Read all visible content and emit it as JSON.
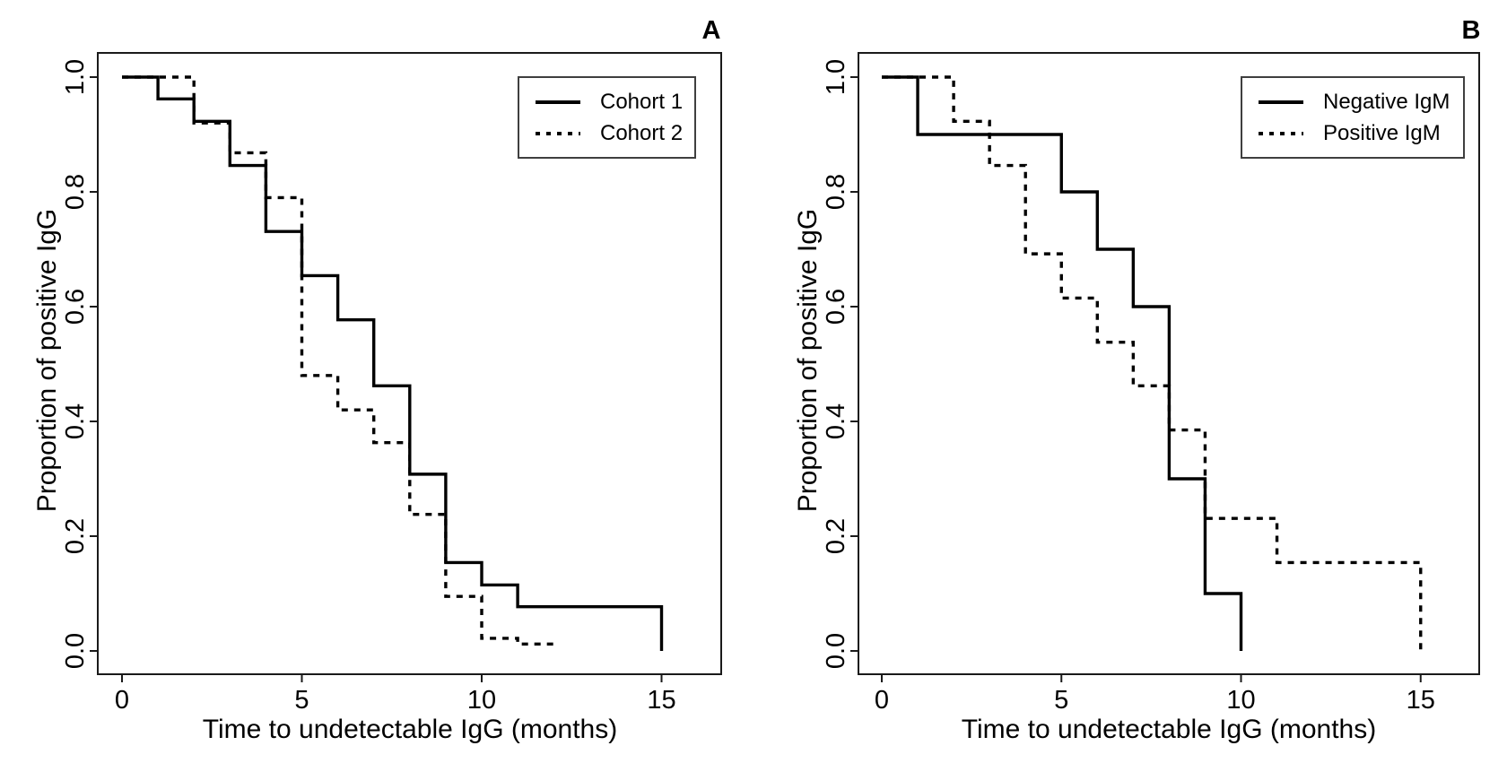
{
  "chart_data": [
    {
      "type": "line",
      "subtype": "kaplan-meier-step",
      "panel_label": "A",
      "title": "",
      "xlabel": "Time to undetectable IgG (months)",
      "ylabel": "Proportion of positive IgG",
      "xlim": [
        0,
        16
      ],
      "ylim": [
        0,
        1
      ],
      "x_ticks": [
        0,
        5,
        10,
        15
      ],
      "y_ticks": [
        0.0,
        0.2,
        0.4,
        0.6,
        0.8,
        1.0
      ],
      "grid": false,
      "legend_position": "top-right",
      "line_color": "#000000",
      "series": [
        {
          "name": "Cohort 1",
          "line_style": "solid",
          "color": "#000000",
          "steps": [
            [
              0,
              1.0
            ],
            [
              1,
              0.962
            ],
            [
              2,
              0.923
            ],
            [
              3,
              0.846
            ],
            [
              4,
              0.731
            ],
            [
              5,
              0.654
            ],
            [
              6,
              0.577
            ],
            [
              7,
              0.462
            ],
            [
              8,
              0.308
            ],
            [
              9,
              0.154
            ],
            [
              10,
              0.115
            ],
            [
              11,
              0.077
            ],
            [
              15,
              0.0
            ]
          ]
        },
        {
          "name": "Cohort 2",
          "line_style": "dashed",
          "color": "#000000",
          "steps": [
            [
              0,
              1.0
            ],
            [
              2,
              0.92
            ],
            [
              3,
              0.868
            ],
            [
              4,
              0.79
            ],
            [
              5,
              0.48
            ],
            [
              6,
              0.42
            ],
            [
              7,
              0.363
            ],
            [
              8,
              0.238
            ],
            [
              9,
              0.095
            ],
            [
              10,
              0.022
            ],
            [
              11,
              0.012
            ]
          ],
          "end_x": 12
        }
      ]
    },
    {
      "type": "line",
      "subtype": "kaplan-meier-step",
      "panel_label": "B",
      "title": "",
      "xlabel": "Time to undetectable IgG (months)",
      "ylabel": "Proportion of positive IgG",
      "xlim": [
        0,
        16
      ],
      "ylim": [
        0,
        1
      ],
      "x_ticks": [
        0,
        5,
        10,
        15
      ],
      "y_ticks": [
        0.0,
        0.2,
        0.4,
        0.6,
        0.8,
        1.0
      ],
      "grid": false,
      "legend_position": "top-right",
      "line_color": "#000000",
      "series": [
        {
          "name": "Negative IgM",
          "line_style": "solid",
          "color": "#000000",
          "steps": [
            [
              0,
              1.0
            ],
            [
              1,
              0.9
            ],
            [
              5,
              0.8
            ],
            [
              6,
              0.7
            ],
            [
              7,
              0.6
            ],
            [
              8,
              0.3
            ],
            [
              9,
              0.1
            ],
            [
              10,
              0.0
            ]
          ]
        },
        {
          "name": "Positive IgM",
          "line_style": "dashed",
          "color": "#000000",
          "steps": [
            [
              0,
              1.0
            ],
            [
              2,
              0.923
            ],
            [
              3,
              0.846
            ],
            [
              4,
              0.692
            ],
            [
              5,
              0.615
            ],
            [
              6,
              0.538
            ],
            [
              7,
              0.462
            ],
            [
              8,
              0.385
            ],
            [
              9,
              0.231
            ],
            [
              11,
              0.154
            ],
            [
              15,
              0.0
            ]
          ]
        }
      ]
    }
  ]
}
